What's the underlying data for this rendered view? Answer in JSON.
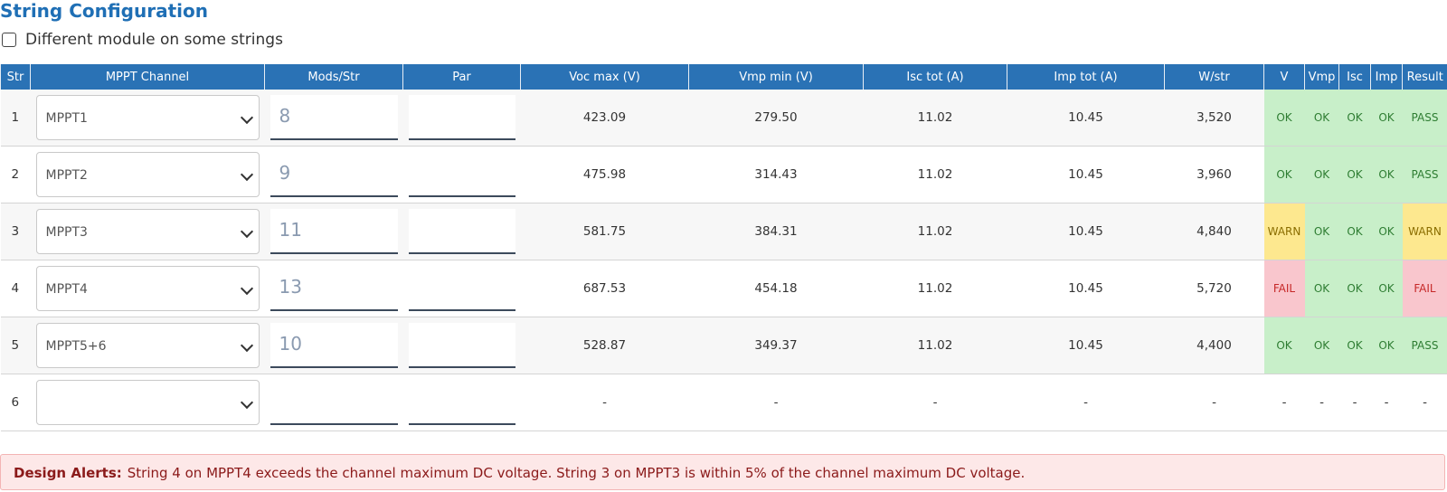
{
  "header": {
    "title": "String Configuration",
    "checkbox_label": "Different module on some strings"
  },
  "table": {
    "columns": [
      "Str",
      "MPPT Channel",
      "Mods/Str",
      "Par",
      "Voc max (V)",
      "Vmp min (V)",
      "Isc tot (A)",
      "Imp tot (A)",
      "W/str",
      "V",
      "Vmp",
      "Isc",
      "Imp",
      "Result"
    ],
    "rows": [
      {
        "str": "1",
        "channel": "MPPT1",
        "mods": "8",
        "voc": "423.09",
        "vmp": "279.50",
        "isc": "11.02",
        "imp": "10.45",
        "w": "3,520",
        "checks": [
          "OK",
          "OK",
          "OK",
          "OK",
          "PASS"
        ]
      },
      {
        "str": "2",
        "channel": "MPPT2",
        "mods": "9",
        "voc": "475.98",
        "vmp": "314.43",
        "isc": "11.02",
        "imp": "10.45",
        "w": "3,960",
        "checks": [
          "OK",
          "OK",
          "OK",
          "OK",
          "PASS"
        ]
      },
      {
        "str": "3",
        "channel": "MPPT3",
        "mods": "11",
        "voc": "581.75",
        "vmp": "384.31",
        "isc": "11.02",
        "imp": "10.45",
        "w": "4,840",
        "checks": [
          "WARN",
          "OK",
          "OK",
          "OK",
          "WARN"
        ]
      },
      {
        "str": "4",
        "channel": "MPPT4",
        "mods": "13",
        "voc": "687.53",
        "vmp": "454.18",
        "isc": "11.02",
        "imp": "10.45",
        "w": "5,720",
        "checks": [
          "FAIL",
          "OK",
          "OK",
          "OK",
          "FAIL"
        ]
      },
      {
        "str": "5",
        "channel": "MPPT5+6",
        "mods": "10",
        "voc": "528.87",
        "vmp": "349.37",
        "isc": "11.02",
        "imp": "10.45",
        "w": "4,400",
        "checks": [
          "OK",
          "OK",
          "OK",
          "OK",
          "PASS"
        ]
      },
      {
        "str": "6",
        "voc": "-",
        "vmp": "-",
        "isc": "-",
        "imp": "-",
        "w": "-",
        "checks": [
          "-",
          "-",
          "-",
          "-",
          "-"
        ]
      }
    ]
  },
  "alert": {
    "label": "Design Alerts:",
    "text": "String 4 on MPPT4 exceeds the channel maximum DC voltage. String 3 on MPPT3 is within 5% of the channel maximum DC voltage."
  }
}
